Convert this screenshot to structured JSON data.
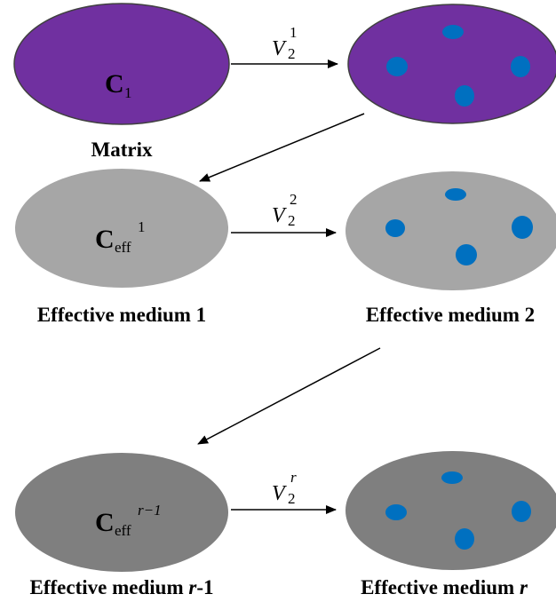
{
  "colors": {
    "matrix_fill": "#7030A0",
    "medium1_fill": "#A6A6A6",
    "mediumr_fill": "#7F7F7F",
    "inclusion_fill": "#0070C0",
    "outline": "#404040",
    "arrow": "#000000"
  },
  "row1": {
    "left_symbol": "C",
    "left_subscript": "1",
    "arrow_symbol": "V",
    "arrow_subscript": "2",
    "arrow_superscript": "1",
    "left_caption": "Matrix"
  },
  "row2": {
    "left_symbol": "C",
    "left_subscript": "eff",
    "left_superscript": "1",
    "arrow_symbol": "V",
    "arrow_subscript": "2",
    "arrow_superscript": "2",
    "left_caption": "Effective medium 1",
    "right_caption": "Effective medium 2"
  },
  "row3": {
    "left_symbol": "C",
    "left_subscript": "eff",
    "left_superscript": "r−1",
    "arrow_symbol": "V",
    "arrow_subscript": "2",
    "arrow_superscript": "r",
    "left_caption_prefix": "Effective medium ",
    "left_caption_var": "r",
    "left_caption_suffix": "-1",
    "right_caption_prefix": "Effective medium ",
    "right_caption_var": "r"
  }
}
